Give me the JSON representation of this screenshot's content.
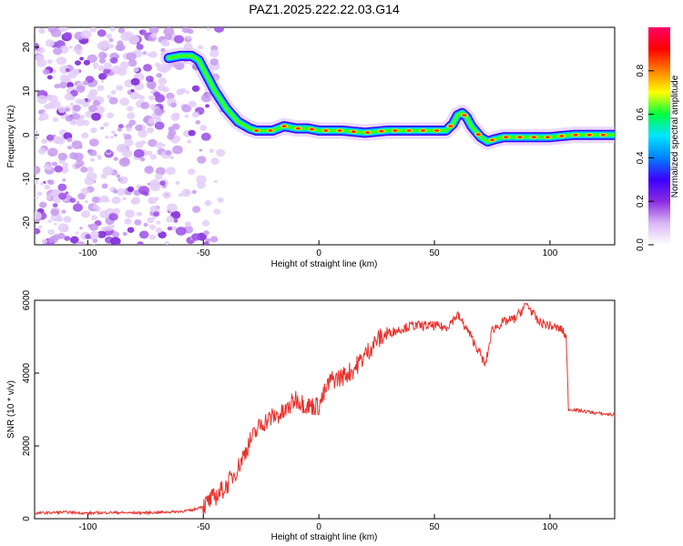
{
  "figure_title": "PAZ1.2025.222.22.03.G14",
  "chart_data": [
    {
      "type": "heatmap",
      "title": "PAZ1.2025.222.22.03.G14",
      "xlabel": "Height of straight line (km)",
      "ylabel": "Frequency (Hz)",
      "xlim": [
        -123,
        128
      ],
      "ylim": [
        -25,
        24.5
      ],
      "xticks": [
        -100,
        -50,
        0,
        50,
        100
      ],
      "yticks": [
        -20,
        -10,
        0,
        10,
        20
      ],
      "colorbar": {
        "label": "Normalized spectral amplitude",
        "range": [
          0,
          1
        ],
        "ticks": [
          0.0,
          0.2,
          0.4,
          0.6,
          0.8
        ],
        "colormap": [
          "#ffffff",
          "#d9b6f5",
          "#8a2be2",
          "#3c00ff",
          "#0080ff",
          "#00e5ff",
          "#00ff40",
          "#ffff00",
          "#ff8000",
          "#ff0000",
          "#ff0066"
        ]
      },
      "ridge": {
        "x": [
          -65,
          -60,
          -55,
          -52,
          -50,
          -45,
          -40,
          -35,
          -30,
          -27,
          -20,
          -15,
          -10,
          -5,
          0,
          10,
          20,
          30,
          40,
          50,
          55,
          58,
          60,
          62,
          64,
          66,
          70,
          73,
          76,
          80,
          90,
          100,
          110,
          120,
          128
        ],
        "y": [
          17.5,
          18,
          18,
          17,
          15,
          10,
          6,
          3,
          1.5,
          1,
          1,
          2,
          1.5,
          1.5,
          1,
          1,
          0.5,
          1,
          1,
          1,
          1,
          2.5,
          4.5,
          5,
          4,
          2,
          -0.5,
          -1.5,
          -1,
          -0.5,
          -0.5,
          -0.5,
          0,
          0,
          0
        ]
      },
      "noise_region": {
        "x_start": -123,
        "x_end": -50
      }
    },
    {
      "type": "line",
      "xlabel": "Height of straight line (km)",
      "ylabel": "SNR (10 * v/v)",
      "xlim": [
        -123,
        128
      ],
      "ylim": [
        0,
        6000
      ],
      "xticks": [
        -100,
        -50,
        0,
        50,
        100
      ],
      "yticks": [
        0,
        2000,
        4000,
        6000
      ],
      "color": "#e8312b",
      "series": [
        {
          "x": [
            -123,
            -110,
            -100,
            -90,
            -80,
            -70,
            -60,
            -55,
            -50,
            -45,
            -40,
            -35,
            -30,
            -25,
            -20,
            -15,
            -10,
            -5,
            0,
            5,
            10,
            15,
            20,
            25,
            30,
            40,
            50,
            55,
            60,
            65,
            70,
            72,
            75,
            80,
            85,
            90,
            95,
            100,
            105,
            107,
            108,
            110,
            115,
            120,
            128
          ],
          "y": [
            150,
            180,
            150,
            170,
            160,
            170,
            200,
            230,
            350,
            600,
            900,
            1400,
            2100,
            2600,
            2800,
            2900,
            3300,
            3100,
            3100,
            3800,
            3900,
            4100,
            4500,
            4900,
            5100,
            5300,
            5300,
            5250,
            5600,
            5100,
            4500,
            4200,
            5200,
            5400,
            5500,
            5900,
            5400,
            5300,
            5200,
            5000,
            3000,
            3000,
            2950,
            2900,
            2850
          ]
        }
      ]
    }
  ]
}
